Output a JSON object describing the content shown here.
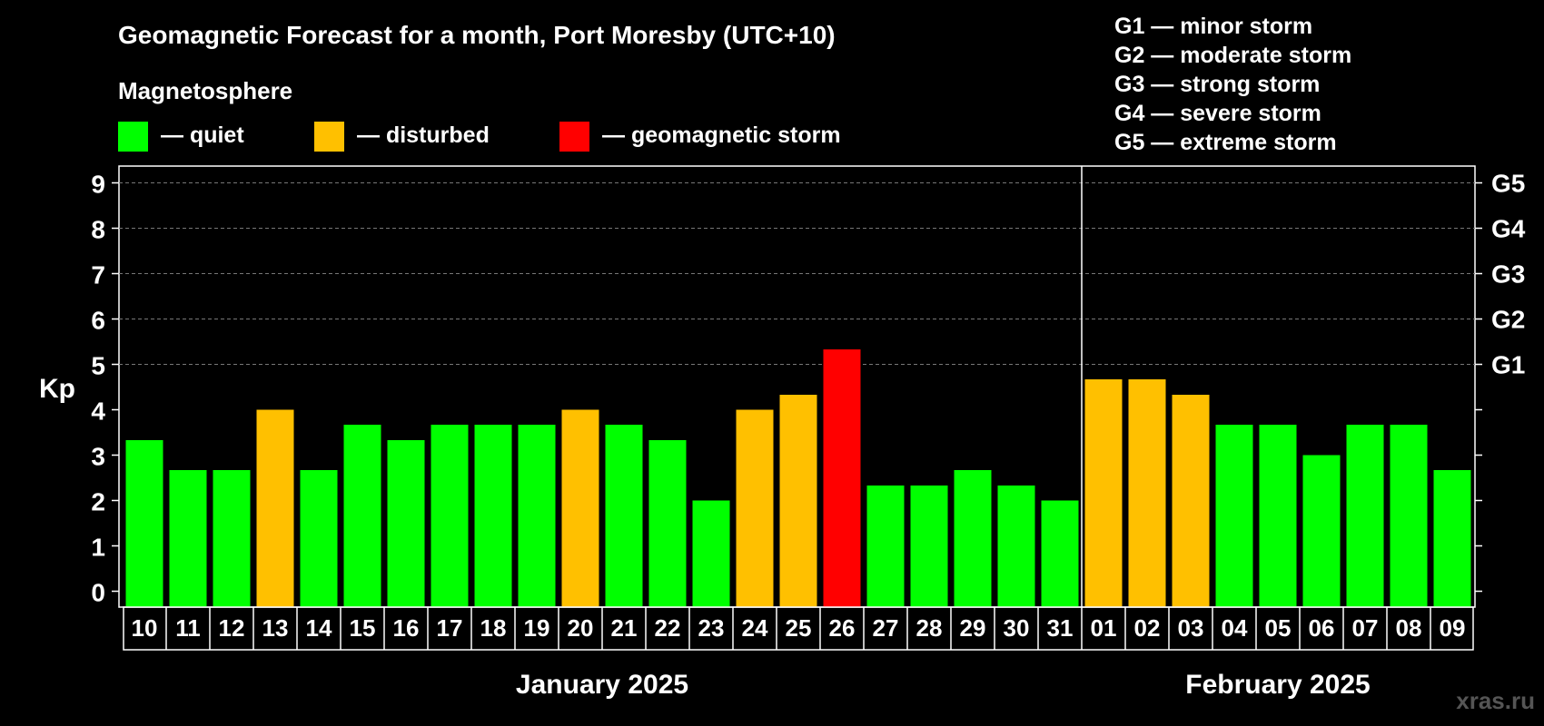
{
  "header": {
    "title": "Geomagnetic Forecast for a month, Port Moresby (UTC+10)",
    "subtitle": "Magnetosphere"
  },
  "legend": {
    "items": [
      {
        "label": "— quiet",
        "color": "#00ff00"
      },
      {
        "label": "— disturbed",
        "color": "#ffc000"
      },
      {
        "label": "— geomagnetic storm",
        "color": "#ff0000"
      }
    ]
  },
  "storm_scale": [
    "G1 — minor storm",
    "G2 — moderate storm",
    "G3 — strong storm",
    "G4 — severe storm",
    "G5 — extreme storm"
  ],
  "watermark": "xras.ru",
  "chart_data": {
    "type": "bar",
    "ylabel": "Kp",
    "ylim": [
      0,
      9
    ],
    "yticks": [
      "0",
      "1",
      "2",
      "3",
      "4",
      "5",
      "6",
      "7",
      "8",
      "9"
    ],
    "right_axis": [
      {
        "label": "G1",
        "kp": 5
      },
      {
        "label": "G2",
        "kp": 6
      },
      {
        "label": "G3",
        "kp": 7
      },
      {
        "label": "G4",
        "kp": 8
      },
      {
        "label": "G5",
        "kp": 9
      }
    ],
    "grid": true,
    "categories": [
      "10",
      "11",
      "12",
      "13",
      "14",
      "15",
      "16",
      "17",
      "18",
      "19",
      "20",
      "21",
      "22",
      "23",
      "24",
      "25",
      "26",
      "27",
      "28",
      "29",
      "30",
      "31",
      "01",
      "02",
      "03",
      "04",
      "05",
      "06",
      "07",
      "08",
      "09"
    ],
    "values": [
      3.33,
      2.67,
      2.67,
      4.0,
      2.67,
      3.67,
      3.33,
      3.67,
      3.67,
      3.67,
      4.0,
      3.67,
      3.33,
      2.0,
      4.0,
      4.33,
      5.33,
      2.33,
      2.33,
      2.67,
      2.33,
      2.0,
      4.67,
      4.67,
      4.33,
      3.67,
      3.67,
      3.0,
      3.67,
      3.67,
      2.67
    ],
    "status": [
      "quiet",
      "quiet",
      "quiet",
      "disturbed",
      "quiet",
      "quiet",
      "quiet",
      "quiet",
      "quiet",
      "quiet",
      "disturbed",
      "quiet",
      "quiet",
      "quiet",
      "disturbed",
      "disturbed",
      "storm",
      "quiet",
      "quiet",
      "quiet",
      "quiet",
      "quiet",
      "disturbed",
      "disturbed",
      "disturbed",
      "quiet",
      "quiet",
      "quiet",
      "quiet",
      "quiet",
      "quiet"
    ],
    "status_colors": {
      "quiet": "#00ff00",
      "disturbed": "#ffc000",
      "storm": "#ff0000"
    },
    "months": [
      {
        "label": "January 2025",
        "first_index": 0,
        "last_index": 21
      },
      {
        "label": "February 2025",
        "first_index": 22,
        "last_index": 30
      }
    ]
  }
}
